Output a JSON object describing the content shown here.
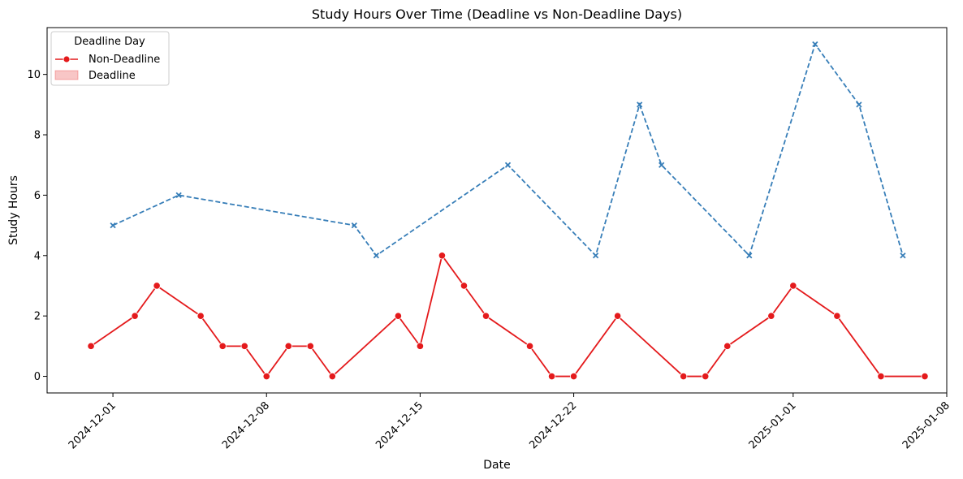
{
  "chart_data": {
    "type": "line",
    "title": "Study Hours Over Time (Deadline vs Non-Deadline Days)",
    "xlabel": "Date",
    "ylabel": "Study Hours",
    "xlim": [
      "2024-11-28",
      "2025-01-08"
    ],
    "ylim": [
      -0.55,
      11.55
    ],
    "x_ticks": [
      "2024-12-01",
      "2024-12-08",
      "2024-12-15",
      "2024-12-22",
      "2025-01-01",
      "2025-01-08"
    ],
    "y_ticks": [
      0,
      2,
      4,
      6,
      8,
      10
    ],
    "grid": false,
    "legend": {
      "title": "Deadline Day",
      "placement": "upper-left",
      "entries": [
        "Non-Deadline",
        "Deadline"
      ]
    },
    "series": [
      {
        "color": "#e41a1c",
        "marker": "circle",
        "style": "solid",
        "x": [
          "2024-11-30",
          "2024-12-02",
          "2024-12-03",
          "2024-12-05",
          "2024-12-06",
          "2024-12-07",
          "2024-12-08",
          "2024-12-09",
          "2024-12-10",
          "2024-12-11",
          "2024-12-14",
          "2024-12-15",
          "2024-12-16",
          "2024-12-17",
          "2024-12-18",
          "2024-12-20",
          "2024-12-21",
          "2024-12-22",
          "2024-12-24",
          "2024-12-27",
          "2024-12-28",
          "2024-12-29",
          "2024-12-31",
          "2025-01-01",
          "2025-01-03",
          "2025-01-05",
          "2025-01-07"
        ],
        "values": [
          1,
          2,
          3,
          2,
          1,
          1,
          0,
          1,
          1,
          0,
          2,
          1,
          4,
          3,
          2,
          1,
          0,
          0,
          2,
          0,
          0,
          1,
          2,
          3,
          2,
          0,
          0
        ]
      },
      {
        "color": "#377eb8",
        "marker": "x",
        "style": "dashed",
        "x": [
          "2024-12-01",
          "2024-12-04",
          "2024-12-12",
          "2024-12-13",
          "2024-12-19",
          "2024-12-23",
          "2024-12-25",
          "2024-12-26",
          "2024-12-30",
          "2025-01-02",
          "2025-01-04",
          "2025-01-06"
        ],
        "values": [
          5,
          6,
          5,
          4,
          7,
          4,
          9,
          7,
          4,
          11,
          9,
          4
        ]
      }
    ]
  }
}
